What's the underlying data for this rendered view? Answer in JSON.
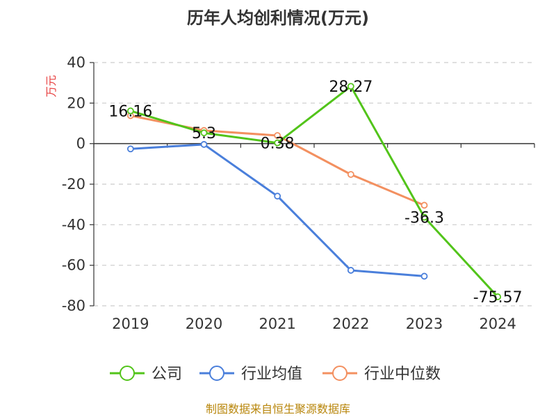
{
  "title": "历年人均创利情况(万元)",
  "source_text": "制图数据来自恒生聚源数据库",
  "chart_data": {
    "type": "line",
    "title": "历年人均创利情况(万元)",
    "ylabel": "万元",
    "xlabel": "",
    "categories": [
      "2019",
      "2020",
      "2021",
      "2022",
      "2023",
      "2024"
    ],
    "ylim": [
      -80,
      40
    ],
    "yticks": [
      40,
      20,
      0,
      -20,
      -40,
      -60,
      -80
    ],
    "grid": true,
    "legend_position": "bottom",
    "series": [
      {
        "name": "公司",
        "color": "#52c41a",
        "values": [
          16.16,
          5.3,
          0.38,
          28.27,
          -36.3,
          -75.57
        ],
        "labels": [
          "16.16",
          "5.3",
          "0.38",
          "28.27",
          "-36.3",
          "-75.57"
        ]
      },
      {
        "name": "行业均值",
        "color": "#4a7fdb",
        "values": [
          -2.6,
          -0.4,
          -25.9,
          -62.5,
          -65.4,
          null
        ],
        "labels": []
      },
      {
        "name": "行业中位数",
        "color": "#f39060",
        "values": [
          13.8,
          6.5,
          4.0,
          -15.2,
          -30.4,
          null
        ],
        "labels": []
      }
    ]
  }
}
